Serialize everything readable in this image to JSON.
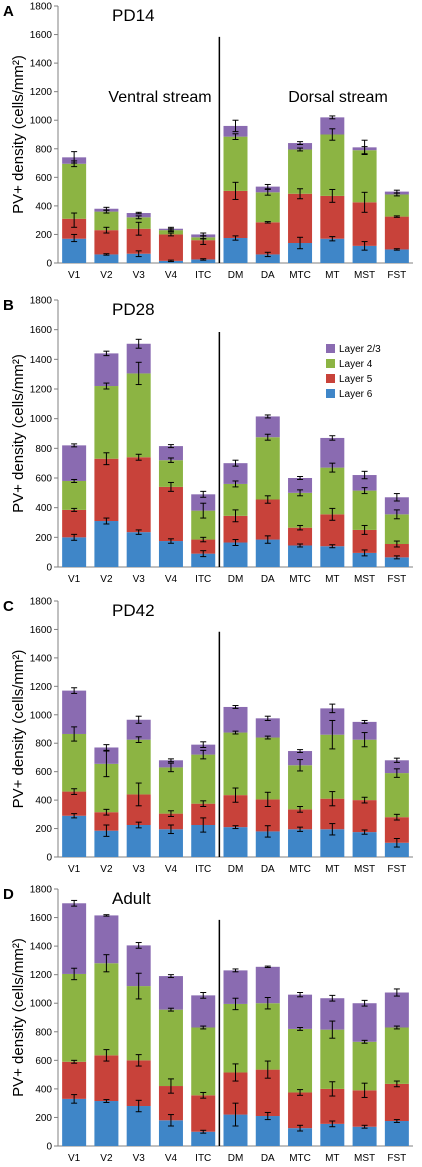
{
  "figure": {
    "segment_colors": [
      "#3f86c8",
      "#c8423a",
      "#8cb443",
      "#8a6bb1"
    ],
    "errorbar_color": "#000000"
  },
  "chart_data": [
    {
      "type": "bar",
      "stacked": true,
      "panel_letter": "A",
      "title": "PD14",
      "ylabel": "PV+ density (cells/mm²)",
      "ylim": [
        0,
        1800
      ],
      "yticks": [
        0,
        200,
        400,
        600,
        800,
        1000,
        1200,
        1400,
        1600,
        1800
      ],
      "categories": [
        "V1",
        "V2",
        "V3",
        "V4",
        "ITC",
        "DM",
        "DA",
        "MTC",
        "MT",
        "MST",
        "FST"
      ],
      "divider_after_index": 4,
      "annotations": [
        "Ventral stream",
        "Dorsal stream"
      ],
      "legend": [],
      "series": [
        {
          "values": [
            170,
            60,
            65,
            15,
            25,
            175,
            60,
            140,
            170,
            120,
            95
          ],
          "errors": [
            [
              20,
              30
            ],
            [
              5,
              5
            ],
            [
              20,
              20
            ],
            [
              5,
              5
            ],
            [
              5,
              5
            ],
            [
              15,
              15
            ],
            [
              15,
              15
            ],
            [
              40,
              40
            ],
            [
              15,
              15
            ],
            [
              30,
              30
            ],
            [
              5,
              5
            ]
          ]
        },
        {
          "values": [
            140,
            170,
            175,
            185,
            135,
            330,
            225,
            345,
            300,
            305,
            230
          ],
          "errors": [
            [
              60,
              40
            ],
            [
              20,
              20
            ],
            [
              45,
              45
            ],
            [
              10,
              10
            ],
            [
              30,
              10
            ],
            [
              60,
              60
            ],
            [
              5,
              5
            ],
            [
              35,
              35
            ],
            [
              45,
              45
            ],
            [
              70,
              70
            ],
            [
              5,
              5
            ]
          ]
        },
        {
          "values": [
            385,
            130,
            80,
            30,
            20,
            380,
            210,
            310,
            430,
            365,
            155
          ],
          "errors": [
            [
              20,
              20
            ],
            [
              10,
              10
            ],
            [
              10,
              10
            ],
            [
              10,
              10
            ],
            [
              10,
              10
            ],
            [
              20,
              20
            ],
            [
              20,
              20
            ],
            [
              10,
              10
            ],
            [
              40,
              40
            ],
            [
              25,
              25
            ],
            [
              10,
              10
            ]
          ]
        },
        {
          "values": [
            45,
            20,
            30,
            10,
            20,
            75,
            40,
            45,
            120,
            20,
            20
          ],
          "errors": [
            [
              40,
              40
            ],
            [
              10,
              10
            ],
            [
              5,
              5
            ],
            [
              10,
              10
            ],
            [
              10,
              10
            ],
            [
              40,
              40
            ],
            [
              15,
              15
            ],
            [
              10,
              10
            ],
            [
              10,
              10
            ],
            [
              50,
              50
            ],
            [
              10,
              10
            ]
          ]
        }
      ]
    },
    {
      "type": "bar",
      "stacked": true,
      "panel_letter": "B",
      "title": "PD28",
      "ylabel": "PV+ density (cells/mm²)",
      "ylim": [
        0,
        1800
      ],
      "yticks": [
        0,
        200,
        400,
        600,
        800,
        1000,
        1200,
        1400,
        1600,
        1800
      ],
      "categories": [
        "V1",
        "V2",
        "V3",
        "V4",
        "ITC",
        "DM",
        "DA",
        "MTC",
        "MT",
        "MST",
        "FST"
      ],
      "divider_after_index": 4,
      "annotations": [],
      "legend": [
        "Layer 2/3",
        "Layer 4",
        "Layer 5",
        "Layer 6"
      ],
      "series": [
        {
          "values": [
            200,
            310,
            235,
            175,
            90,
            165,
            185,
            145,
            140,
            95,
            65
          ],
          "errors": [
            [
              20,
              20
            ],
            [
              20,
              20
            ],
            [
              15,
              15
            ],
            [
              15,
              15
            ],
            [
              20,
              20
            ],
            [
              20,
              20
            ],
            [
              25,
              25
            ],
            [
              10,
              10
            ],
            [
              10,
              10
            ],
            [
              20,
              20
            ],
            [
              10,
              10
            ]
          ]
        },
        {
          "values": [
            185,
            420,
            505,
            365,
            95,
            180,
            270,
            120,
            215,
            155,
            90
          ],
          "errors": [
            [
              10,
              10
            ],
            [
              40,
              40
            ],
            [
              20,
              20
            ],
            [
              30,
              30
            ],
            [
              15,
              15
            ],
            [
              40,
              40
            ],
            [
              25,
              25
            ],
            [
              15,
              15
            ],
            [
              40,
              40
            ],
            [
              30,
              30
            ],
            [
              20,
              20
            ]
          ]
        },
        {
          "values": [
            195,
            490,
            565,
            180,
            195,
            215,
            420,
            235,
            315,
            265,
            200
          ],
          "errors": [
            [
              10,
              10
            ],
            [
              20,
              20
            ],
            [
              75,
              75
            ],
            [
              15,
              15
            ],
            [
              50,
              50
            ],
            [
              20,
              20
            ],
            [
              20,
              20
            ],
            [
              20,
              20
            ],
            [
              30,
              30
            ],
            [
              20,
              20
            ],
            [
              30,
              30
            ]
          ]
        },
        {
          "values": [
            240,
            220,
            200,
            95,
            110,
            140,
            140,
            100,
            200,
            105,
            115
          ],
          "errors": [
            [
              10,
              10
            ],
            [
              15,
              15
            ],
            [
              30,
              30
            ],
            [
              10,
              10
            ],
            [
              20,
              20
            ],
            [
              20,
              20
            ],
            [
              10,
              10
            ],
            [
              10,
              10
            ],
            [
              15,
              15
            ],
            [
              25,
              25
            ],
            [
              25,
              25
            ]
          ]
        }
      ]
    },
    {
      "type": "bar",
      "stacked": true,
      "panel_letter": "C",
      "title": "PD42",
      "ylabel": "PV+ density (cells/mm²)",
      "ylim": [
        0,
        1800
      ],
      "yticks": [
        0,
        200,
        400,
        600,
        800,
        1000,
        1200,
        1400,
        1600,
        1800
      ],
      "categories": [
        "V1",
        "V2",
        "V3",
        "V4",
        "ITC",
        "DM",
        "DA",
        "MTC",
        "MT",
        "MST",
        "FST"
      ],
      "divider_after_index": 4,
      "annotations": [],
      "legend": [],
      "series": [
        {
          "values": [
            290,
            185,
            225,
            195,
            225,
            210,
            180,
            195,
            195,
            175,
            100
          ],
          "errors": [
            [
              15,
              15
            ],
            [
              40,
              40
            ],
            [
              20,
              20
            ],
            [
              30,
              30
            ],
            [
              50,
              50
            ],
            [
              10,
              10
            ],
            [
              40,
              40
            ],
            [
              15,
              15
            ],
            [
              40,
              40
            ],
            [
              15,
              15
            ],
            [
              30,
              30
            ]
          ]
        },
        {
          "values": [
            170,
            130,
            215,
            110,
            150,
            225,
            225,
            140,
            215,
            225,
            180
          ],
          "errors": [
            [
              20,
              20
            ],
            [
              20,
              20
            ],
            [
              80,
              80
            ],
            [
              20,
              20
            ],
            [
              20,
              20
            ],
            [
              50,
              50
            ],
            [
              50,
              50
            ],
            [
              20,
              20
            ],
            [
              50,
              50
            ],
            [
              20,
              20
            ],
            [
              20,
              20
            ]
          ]
        },
        {
          "values": [
            405,
            340,
            385,
            325,
            345,
            440,
            435,
            310,
            450,
            425,
            310
          ],
          "errors": [
            [
              50,
              50
            ],
            [
              90,
              90
            ],
            [
              20,
              20
            ],
            [
              30,
              30
            ],
            [
              30,
              30
            ],
            [
              10,
              10
            ],
            [
              10,
              10
            ],
            [
              40,
              40
            ],
            [
              100,
              100
            ],
            [
              50,
              50
            ],
            [
              30,
              30
            ]
          ]
        },
        {
          "values": [
            305,
            115,
            140,
            50,
            70,
            180,
            135,
            100,
            185,
            125,
            90
          ],
          "errors": [
            [
              20,
              20
            ],
            [
              20,
              20
            ],
            [
              25,
              25
            ],
            [
              10,
              10
            ],
            [
              20,
              20
            ],
            [
              10,
              10
            ],
            [
              15,
              15
            ],
            [
              10,
              10
            ],
            [
              30,
              30
            ],
            [
              10,
              10
            ],
            [
              15,
              15
            ]
          ]
        }
      ]
    },
    {
      "type": "bar",
      "stacked": true,
      "panel_letter": "D",
      "title": "Adult",
      "ylabel": "PV+ density (cells/mm²)",
      "ylim": [
        0,
        1800
      ],
      "yticks": [
        0,
        200,
        400,
        600,
        800,
        1000,
        1200,
        1400,
        1600,
        1800
      ],
      "categories": [
        "V1",
        "V2",
        "V3",
        "V4",
        "ITC",
        "DM",
        "DA",
        "MTC",
        "MT",
        "MST",
        "FST"
      ],
      "divider_after_index": 4,
      "annotations": [],
      "legend": [],
      "series": [
        {
          "values": [
            330,
            315,
            280,
            180,
            100,
            220,
            210,
            125,
            155,
            135,
            175
          ],
          "errors": [
            [
              30,
              30
            ],
            [
              10,
              10
            ],
            [
              40,
              40
            ],
            [
              40,
              40
            ],
            [
              10,
              10
            ],
            [
              80,
              80
            ],
            [
              25,
              25
            ],
            [
              20,
              20
            ],
            [
              20,
              20
            ],
            [
              10,
              10
            ],
            [
              10,
              10
            ]
          ]
        },
        {
          "values": [
            260,
            320,
            320,
            240,
            255,
            295,
            325,
            250,
            245,
            255,
            260
          ],
          "errors": [
            [
              10,
              10
            ],
            [
              40,
              40
            ],
            [
              40,
              40
            ],
            [
              50,
              50
            ],
            [
              20,
              20
            ],
            [
              60,
              60
            ],
            [
              60,
              60
            ],
            [
              20,
              20
            ],
            [
              50,
              50
            ],
            [
              50,
              50
            ],
            [
              20,
              20
            ]
          ]
        },
        {
          "values": [
            615,
            645,
            520,
            535,
            475,
            480,
            465,
            445,
            415,
            340,
            395
          ],
          "errors": [
            [
              40,
              40
            ],
            [
              60,
              60
            ],
            [
              90,
              90
            ],
            [
              10,
              10
            ],
            [
              10,
              10
            ],
            [
              40,
              40
            ],
            [
              40,
              40
            ],
            [
              10,
              10
            ],
            [
              60,
              60
            ],
            [
              10,
              10
            ],
            [
              10,
              10
            ]
          ]
        },
        {
          "values": [
            495,
            335,
            285,
            235,
            225,
            235,
            255,
            240,
            220,
            270,
            245
          ],
          "errors": [
            [
              20,
              20
            ],
            [
              5,
              5
            ],
            [
              20,
              20
            ],
            [
              10,
              10
            ],
            [
              20,
              20
            ],
            [
              10,
              10
            ],
            [
              5,
              5
            ],
            [
              15,
              15
            ],
            [
              20,
              20
            ],
            [
              20,
              20
            ],
            [
              25,
              25
            ]
          ]
        }
      ]
    }
  ]
}
